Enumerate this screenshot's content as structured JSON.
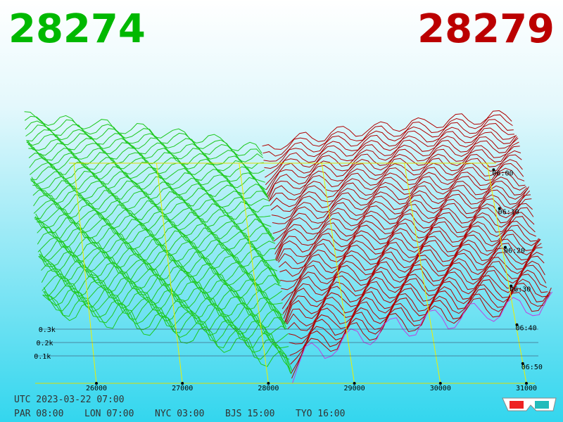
{
  "header": {
    "bid": "28274",
    "ask": "28279"
  },
  "chart": {
    "price_ticks": [
      26000,
      27000,
      28000,
      29000,
      30000,
      31000
    ],
    "depth_ticks": [
      {
        "value": 100,
        "label": "0.1k"
      },
      {
        "value": 200,
        "label": "0.2k"
      },
      {
        "value": 300,
        "label": "0.3k"
      }
    ],
    "time_labels": [
      "06:00",
      "06:10",
      "06:20",
      "06:30",
      "06:40",
      "06:50"
    ]
  },
  "footer": {
    "utc": "UTC 2023-03-22 07:00",
    "cities": [
      "PAR 08:00",
      "LON 07:00",
      "NYC 03:00",
      "BJS 15:00",
      "TYO 16:00"
    ]
  }
}
